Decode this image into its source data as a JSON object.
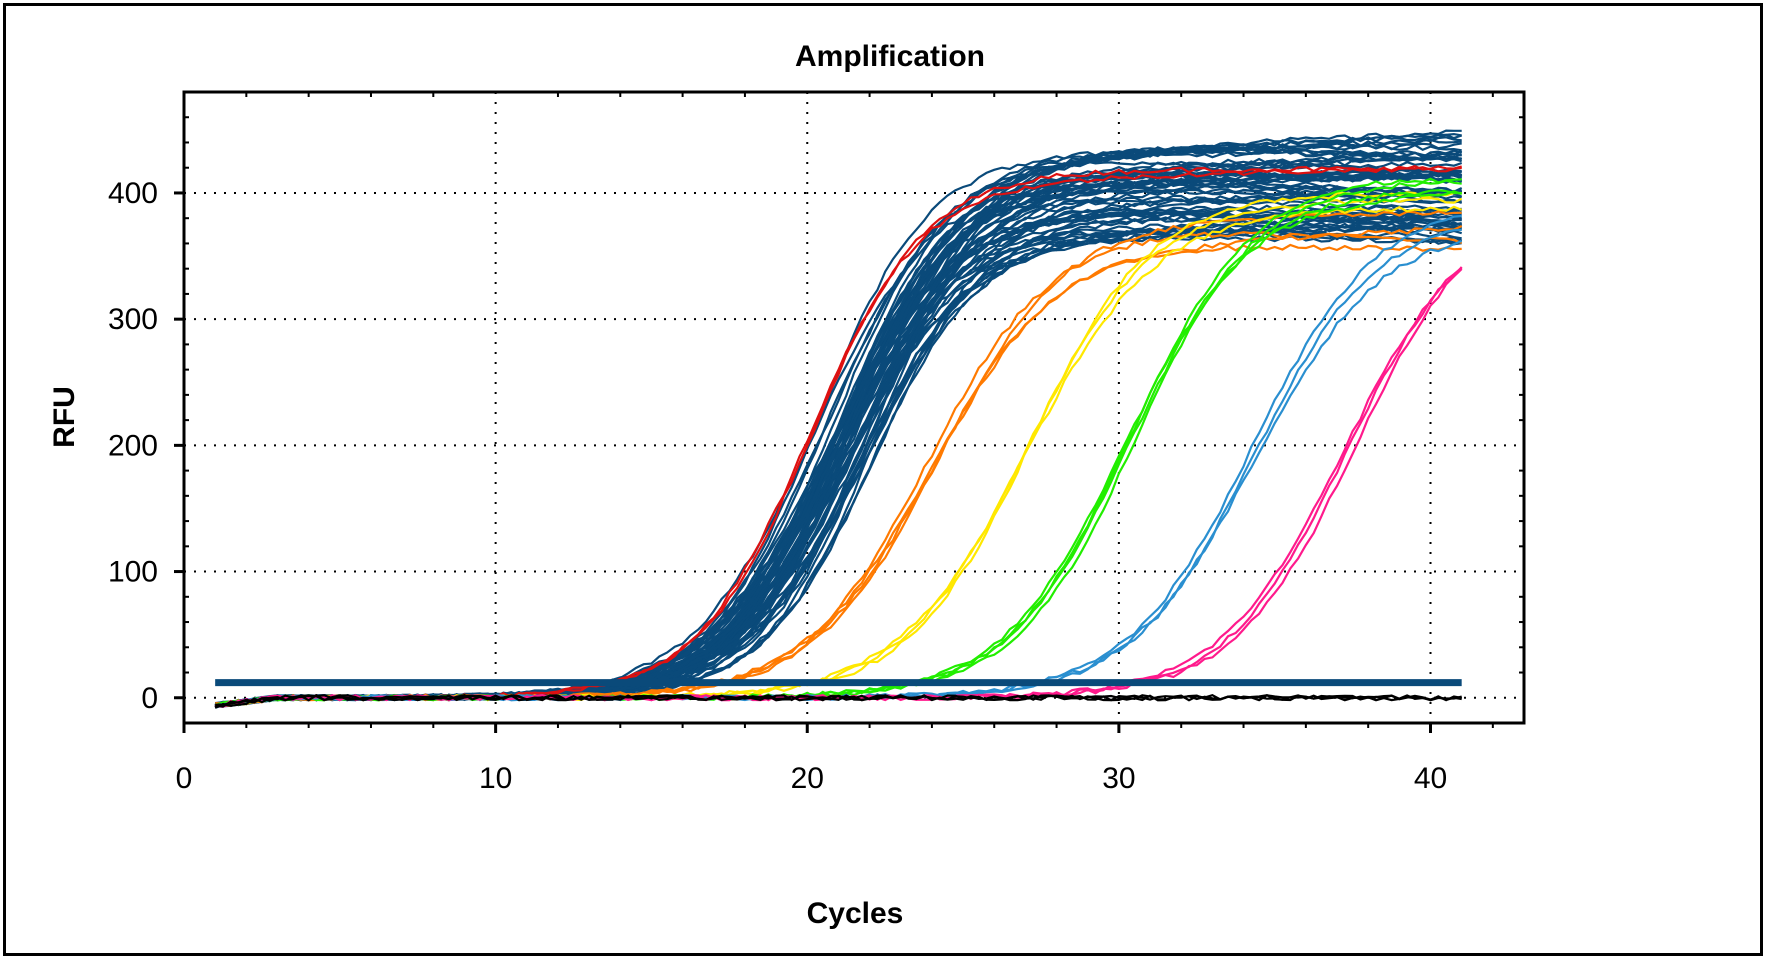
{
  "chart_data": {
    "type": "line",
    "title": "Amplification",
    "xlabel": "Cycles",
    "ylabel": "RFU",
    "xlim": [
      0,
      43
    ],
    "ylim": [
      -20,
      480
    ],
    "xticks": [
      0,
      10,
      20,
      30,
      40
    ],
    "yticks": [
      0,
      100,
      200,
      300,
      400
    ],
    "grid": true,
    "legend": "none",
    "threshold": 12,
    "colors": {
      "background": "#ffffff",
      "axis": "#000000",
      "grid": "#000000",
      "threshold": "#0a4a7a"
    },
    "series_groups": [
      {
        "color": "#0a4a7a",
        "count": 60,
        "ct_range": [
          19.8,
          22.6
        ],
        "plateau_range": [
          365,
          440
        ],
        "slope_range": [
          1.7,
          2.1
        ]
      },
      {
        "color": "#dd1111",
        "count": 2,
        "ct_range": [
          20.0,
          20.4
        ],
        "plateau_range": [
          395,
          430
        ],
        "slope_range": [
          1.8,
          1.9
        ]
      },
      {
        "color": "#ff7a00",
        "count": 4,
        "ct_range": [
          23.6,
          24.4
        ],
        "plateau_range": [
          360,
          385
        ],
        "slope_range": [
          1.9,
          2.1
        ]
      },
      {
        "color": "#ffe800",
        "count": 3,
        "ct_range": [
          26.8,
          27.6
        ],
        "plateau_range": [
          380,
          440
        ],
        "slope_range": [
          1.9,
          2.1
        ]
      },
      {
        "color": "#22ee00",
        "count": 4,
        "ct_range": [
          30.0,
          30.8
        ],
        "plateau_range": [
          380,
          420
        ],
        "slope_range": [
          1.9,
          2.1
        ]
      },
      {
        "color": "#2a8fd0",
        "count": 3,
        "ct_range": [
          34.0,
          34.6
        ],
        "plateau_range": [
          375,
          395
        ],
        "slope_range": [
          1.9,
          2.1
        ]
      },
      {
        "color": "#ff1a8c",
        "count": 3,
        "ct_range": [
          37.2,
          37.8
        ],
        "plateau_range": [
          385,
          400
        ],
        "slope_range": [
          1.9,
          2.0
        ]
      },
      {
        "color": "#000000",
        "count": 3,
        "ct_range": [
          100,
          100
        ],
        "plateau_range": [
          0,
          0
        ],
        "slope_range": [
          2,
          2
        ]
      }
    ],
    "cycle_range": [
      1,
      41
    ]
  }
}
